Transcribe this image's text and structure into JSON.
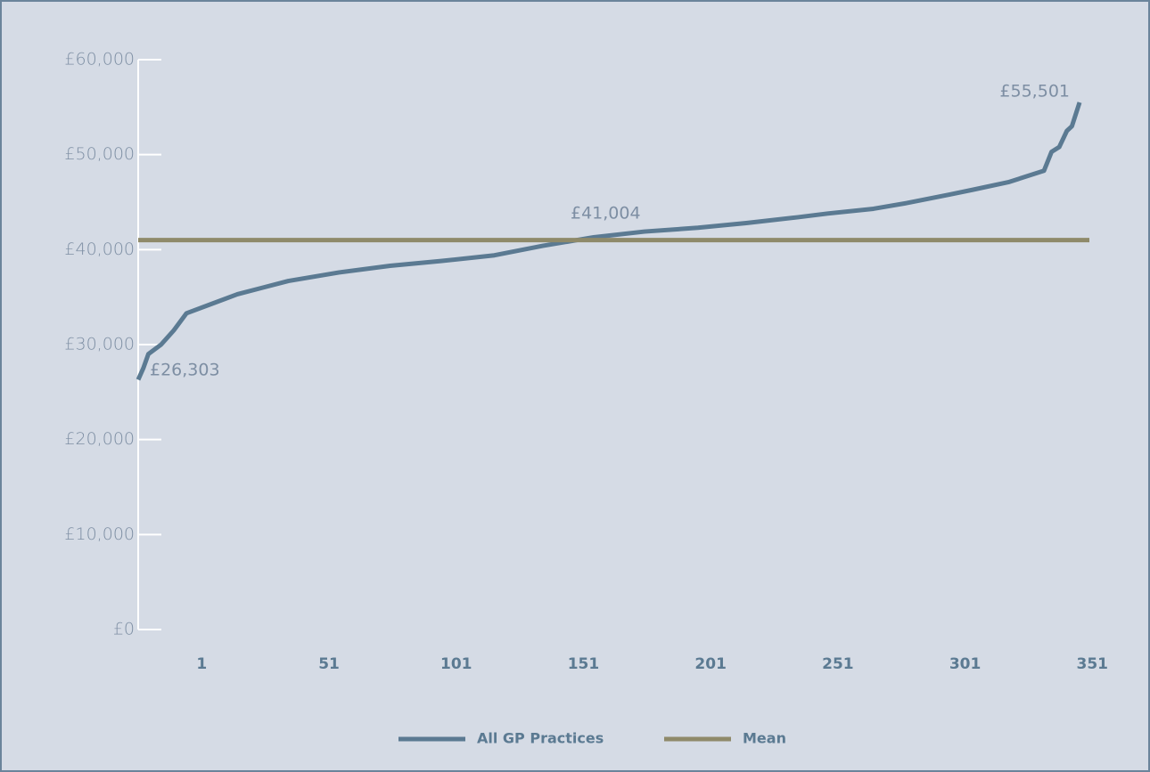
{
  "chart_data": {
    "type": "line",
    "x": [
      1,
      3,
      5,
      10,
      15,
      20,
      30,
      40,
      50,
      60,
      80,
      100,
      120,
      141,
      160,
      180,
      200,
      221,
      240,
      260,
      272,
      290,
      303,
      320,
      329,
      343,
      357,
      360,
      363,
      366,
      368,
      371
    ],
    "series": [
      {
        "name": "All GP Practices",
        "color": "#5b7a92",
        "values": [
          26303,
          27500,
          29000,
          30000,
          31500,
          33300,
          34300,
          35300,
          36000,
          36700,
          37600,
          38300,
          38800,
          39400,
          40400,
          41300,
          41900,
          42300,
          42800,
          43400,
          43800,
          44300,
          44900,
          45800,
          46300,
          47100,
          48300,
          50300,
          50800,
          52500,
          53000,
          55501
        ]
      },
      {
        "name": "Mean",
        "color": "#8f8a6a",
        "mean": 41004
      }
    ],
    "annotations": [
      "£26,303",
      "£41,004",
      "£55,501"
    ],
    "xlim": [
      1,
      371
    ],
    "xticks": [
      1,
      51,
      101,
      151,
      201,
      251,
      301,
      351
    ],
    "ylim": [
      0,
      60000
    ],
    "yticks": [
      {
        "value": 0,
        "label": "£0"
      },
      {
        "value": 10000,
        "label": "£10,000"
      },
      {
        "value": 20000,
        "label": "£20,000"
      },
      {
        "value": 30000,
        "label": "£30,000"
      },
      {
        "value": 40000,
        "label": "£40,000"
      },
      {
        "value": 50000,
        "label": "£50,000"
      },
      {
        "value": 60000,
        "label": "£60,000"
      }
    ]
  }
}
